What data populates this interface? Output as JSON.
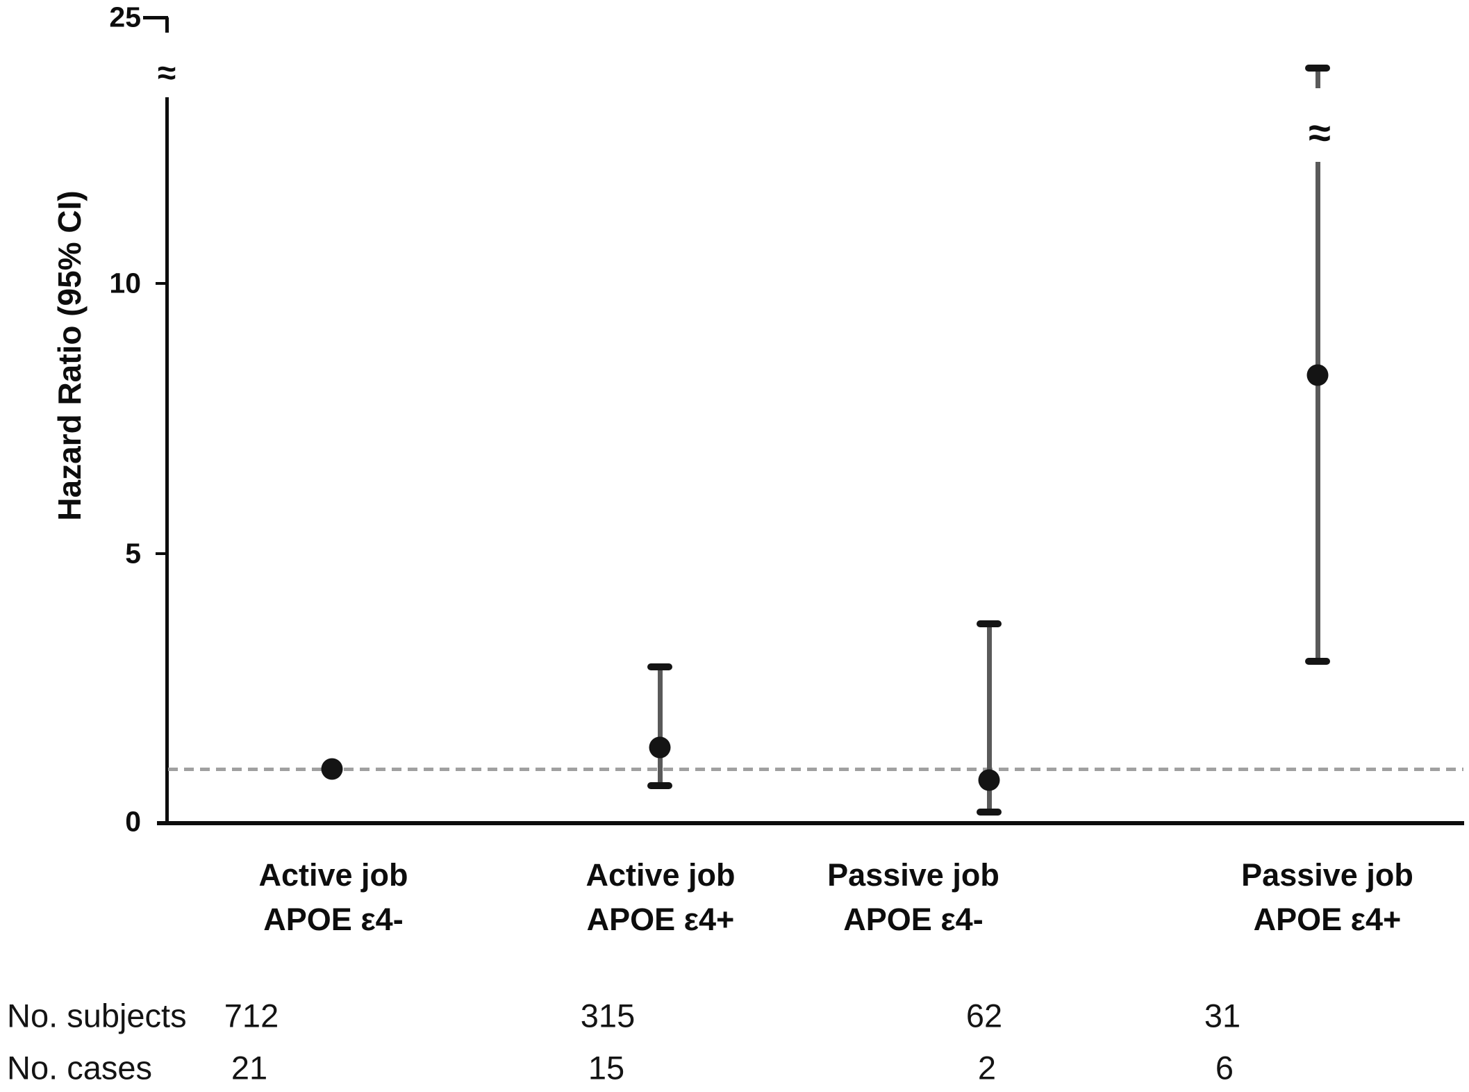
{
  "chart_data": {
    "type": "scatter",
    "subtype": "forest-plot-errorbars",
    "title": "",
    "xlabel": "",
    "ylabel": "Hazard Ratio (95% CI)",
    "yticks": [
      0,
      5,
      10,
      25
    ],
    "ylim": [
      0,
      25
    ],
    "axis_break_between": [
      13.5,
      24
    ],
    "break_symbol": "≈",
    "reference_line": 1.0,
    "grid": false,
    "legend": false,
    "groups": [
      {
        "label_line1": "Active job",
        "label_line2": "APOE ε4-",
        "hr": 1.0,
        "ci_low": null,
        "ci_high": null,
        "ci_high_offscale": false,
        "subjects": "712",
        "cases": "21"
      },
      {
        "label_line1": "Active job",
        "label_line2": "APOE ε4+",
        "hr": 1.4,
        "ci_low": 0.7,
        "ci_high": 2.9,
        "ci_high_offscale": false,
        "subjects": "315",
        "cases": "15"
      },
      {
        "label_line1": "Passive job",
        "label_line2": "APOE ε4-",
        "hr": 0.8,
        "ci_low": 0.2,
        "ci_high": 3.7,
        "ci_high_offscale": false,
        "subjects": "62",
        "cases": "2"
      },
      {
        "label_line1": "Passive job",
        "label_line2": "APOE ε4+",
        "hr": 8.3,
        "ci_low": 3.0,
        "ci_high": 24,
        "ci_high_offscale": true,
        "subjects": "31",
        "cases": "6"
      }
    ],
    "table": {
      "row1_label": "No. subjects",
      "row2_label": "No. cases"
    },
    "colors": {
      "point": "#141414",
      "error_bar": "#5a5a5a",
      "cap": "#141414",
      "axis": "#0d0d0d",
      "reference_dashed": "#a0a0a0",
      "text": "#000000",
      "background": "#ffffff"
    }
  }
}
